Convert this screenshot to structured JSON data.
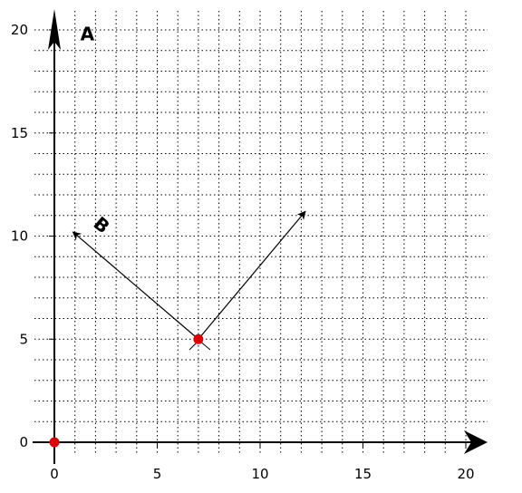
{
  "figure": {
    "x_range": [
      0,
      20
    ],
    "y_range": [
      0,
      20
    ],
    "major_ticks": [
      0,
      5,
      10,
      15,
      20
    ],
    "minor_step": 1,
    "grid": "dotted",
    "colors": {
      "axis": "#000000",
      "grid": "#000000",
      "point": "#e00000",
      "vector": "#000000"
    }
  },
  "points": [
    {
      "name": "origin-point",
      "x": 0,
      "y": 0
    },
    {
      "name": "center-point",
      "x": 7,
      "y": 5
    }
  ],
  "vectors": [
    {
      "name": "vector-up-right",
      "from": [
        7,
        5
      ],
      "to": [
        12.2,
        11.2
      ]
    },
    {
      "name": "vector-up-left",
      "from": [
        7,
        5
      ],
      "to": [
        0.9,
        10.2
      ]
    }
  ],
  "tangent_segment": {
    "from": [
      6.6,
      4.5
    ],
    "to": [
      7.6,
      4.5
    ]
  },
  "labels": [
    {
      "name": "label-a",
      "text": "A",
      "x": 1.6,
      "y": 19.5,
      "rotation": 0
    },
    {
      "name": "label-b",
      "text": "B",
      "x": 2.1,
      "y": 10.3,
      "rotation": 40
    }
  ]
}
